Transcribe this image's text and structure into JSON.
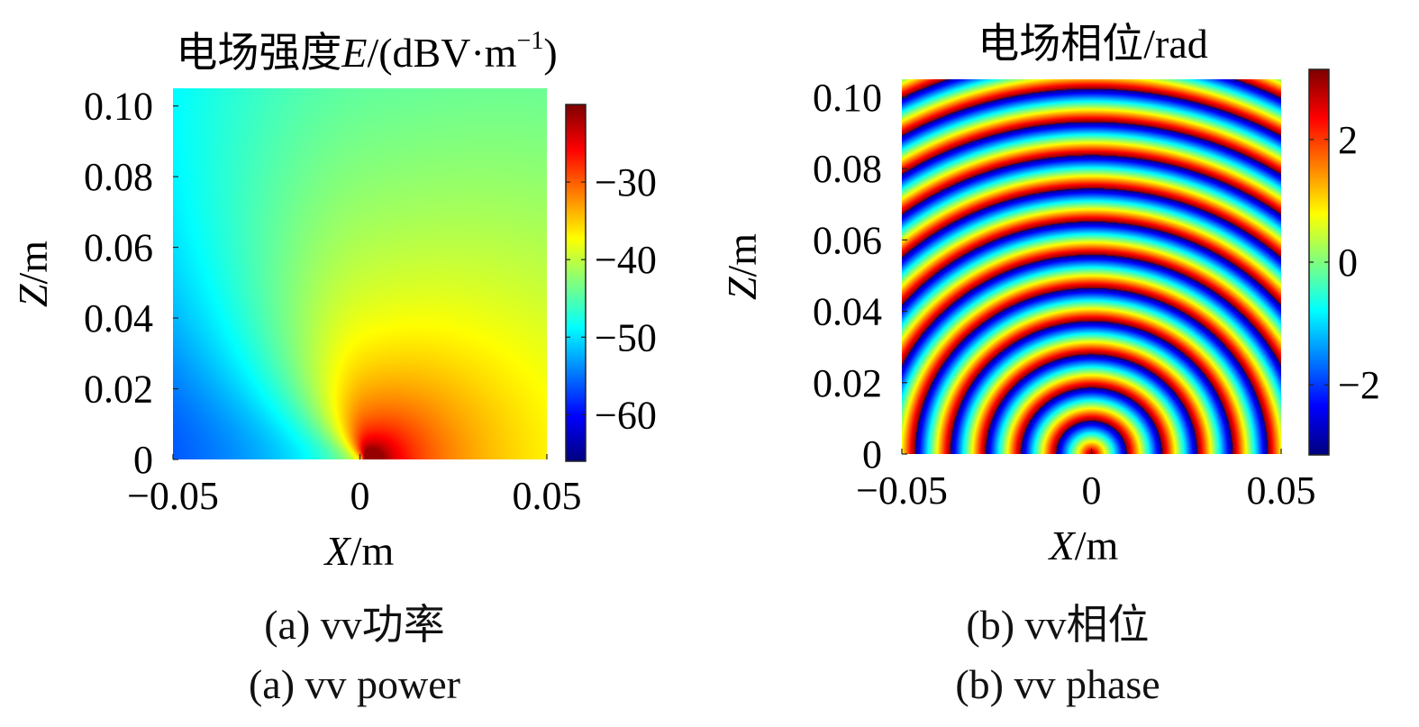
{
  "chart_data": [
    {
      "type": "heatmap",
      "title": "电场强度E/(dBV·m⁻¹)",
      "title_parts": {
        "prefix": "电场强度",
        "symbol": "E",
        "unit": "/(dBV·m",
        "exp": "−1",
        "close": ")"
      },
      "xlabel": {
        "symbol": "X",
        "unit": "/m"
      },
      "ylabel": {
        "symbol": "Z",
        "unit": "/m"
      },
      "xlim": [
        -0.05,
        0.05
      ],
      "ylim": [
        0,
        0.105
      ],
      "x_ticks": [
        -0.05,
        0,
        0.05
      ],
      "x_tick_labels": [
        "−0.05",
        "0",
        "0.05"
      ],
      "y_ticks": [
        0,
        0.02,
        0.04,
        0.06,
        0.08,
        0.1
      ],
      "y_tick_labels": [
        "0",
        "0.02",
        "0.04",
        "0.06",
        "0.08",
        "0.10"
      ],
      "colorbar": {
        "range": [
          -66,
          -20
        ],
        "ticks": [
          -60,
          -50,
          -40,
          -30
        ],
        "tick_labels": [
          "−60",
          "−50",
          "−40",
          "−30"
        ],
        "colormap": "jet"
      },
      "field": {
        "source_x": 0.002,
        "peak_db": -20,
        "floor_db": -66,
        "description": "dipole-like field pattern"
      },
      "caption_zh": "(a) vv功率",
      "caption_en": "(a) vv power"
    },
    {
      "type": "heatmap",
      "title": "电场相位/rad",
      "xlabel": {
        "symbol": "X",
        "unit": "/m"
      },
      "ylabel": {
        "symbol": "Z",
        "unit": "/m"
      },
      "xlim": [
        -0.05,
        0.05
      ],
      "ylim": [
        0,
        0.105
      ],
      "x_ticks": [
        -0.05,
        0,
        0.05
      ],
      "x_tick_labels": [
        "−0.05",
        "0",
        "0.05"
      ],
      "y_ticks": [
        0,
        0.02,
        0.04,
        0.06,
        0.08,
        0.1
      ],
      "y_tick_labels": [
        "0",
        "0.02",
        "0.04",
        "0.06",
        "0.08",
        "0.10"
      ],
      "colorbar": {
        "range": [
          -3.14159,
          3.14159
        ],
        "ticks": [
          -2,
          0,
          2
        ],
        "tick_labels": [
          "−2",
          "0",
          "2"
        ],
        "colormap": "jet"
      },
      "field": {
        "source_x": 0,
        "ring_spacing": 0.0093,
        "description": "concentric phase rings"
      },
      "caption_zh": "(b)  vv相位",
      "caption_en": "(b) vv phase"
    }
  ]
}
